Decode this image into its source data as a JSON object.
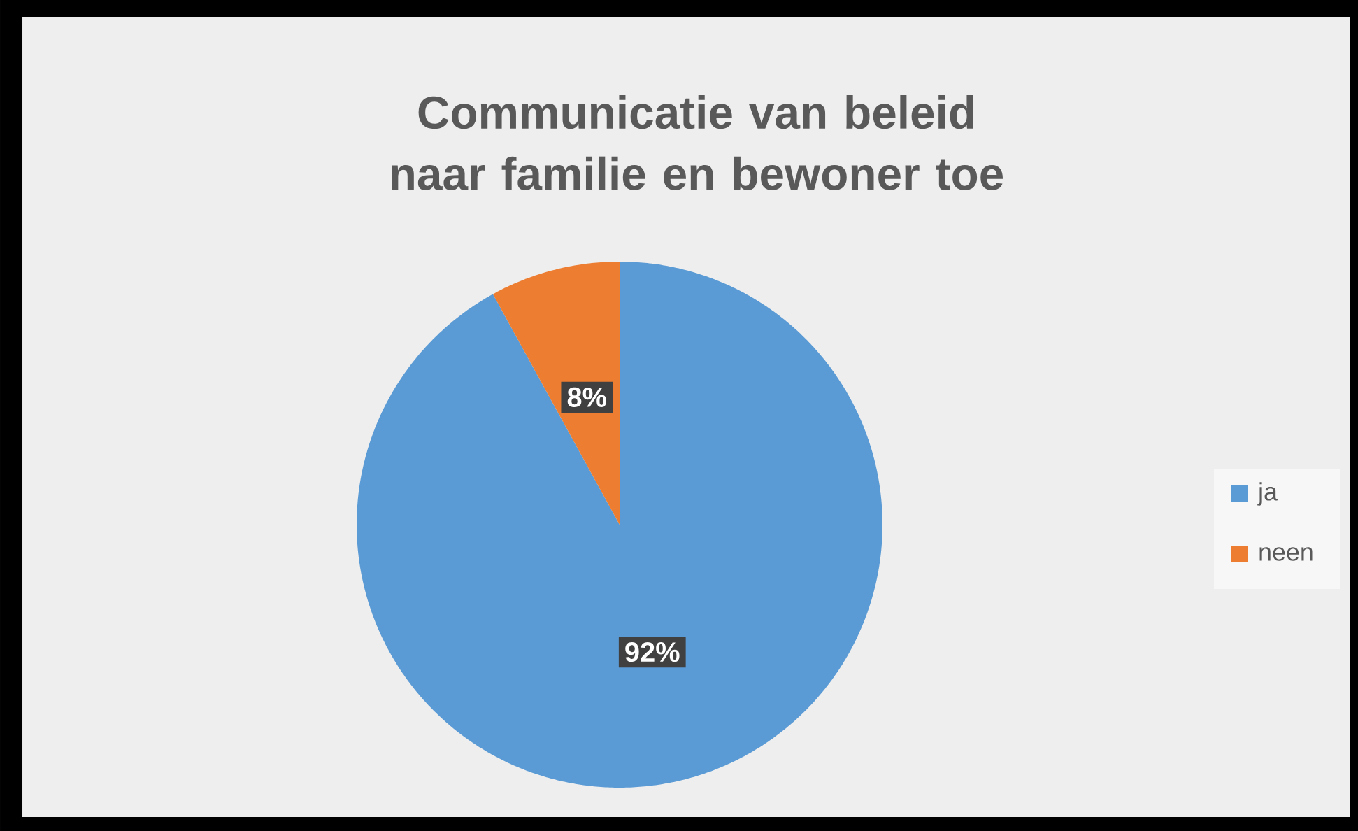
{
  "chart_data": {
    "type": "pie",
    "title": "Communicatie van beleid naar familie en bewoner toe",
    "categories": [
      "ja",
      "neen"
    ],
    "values": [
      92,
      8
    ],
    "colors": [
      "#5b9bd5",
      "#ed7d31"
    ],
    "value_labels": [
      "92%",
      "8%"
    ],
    "legend": "right"
  }
}
